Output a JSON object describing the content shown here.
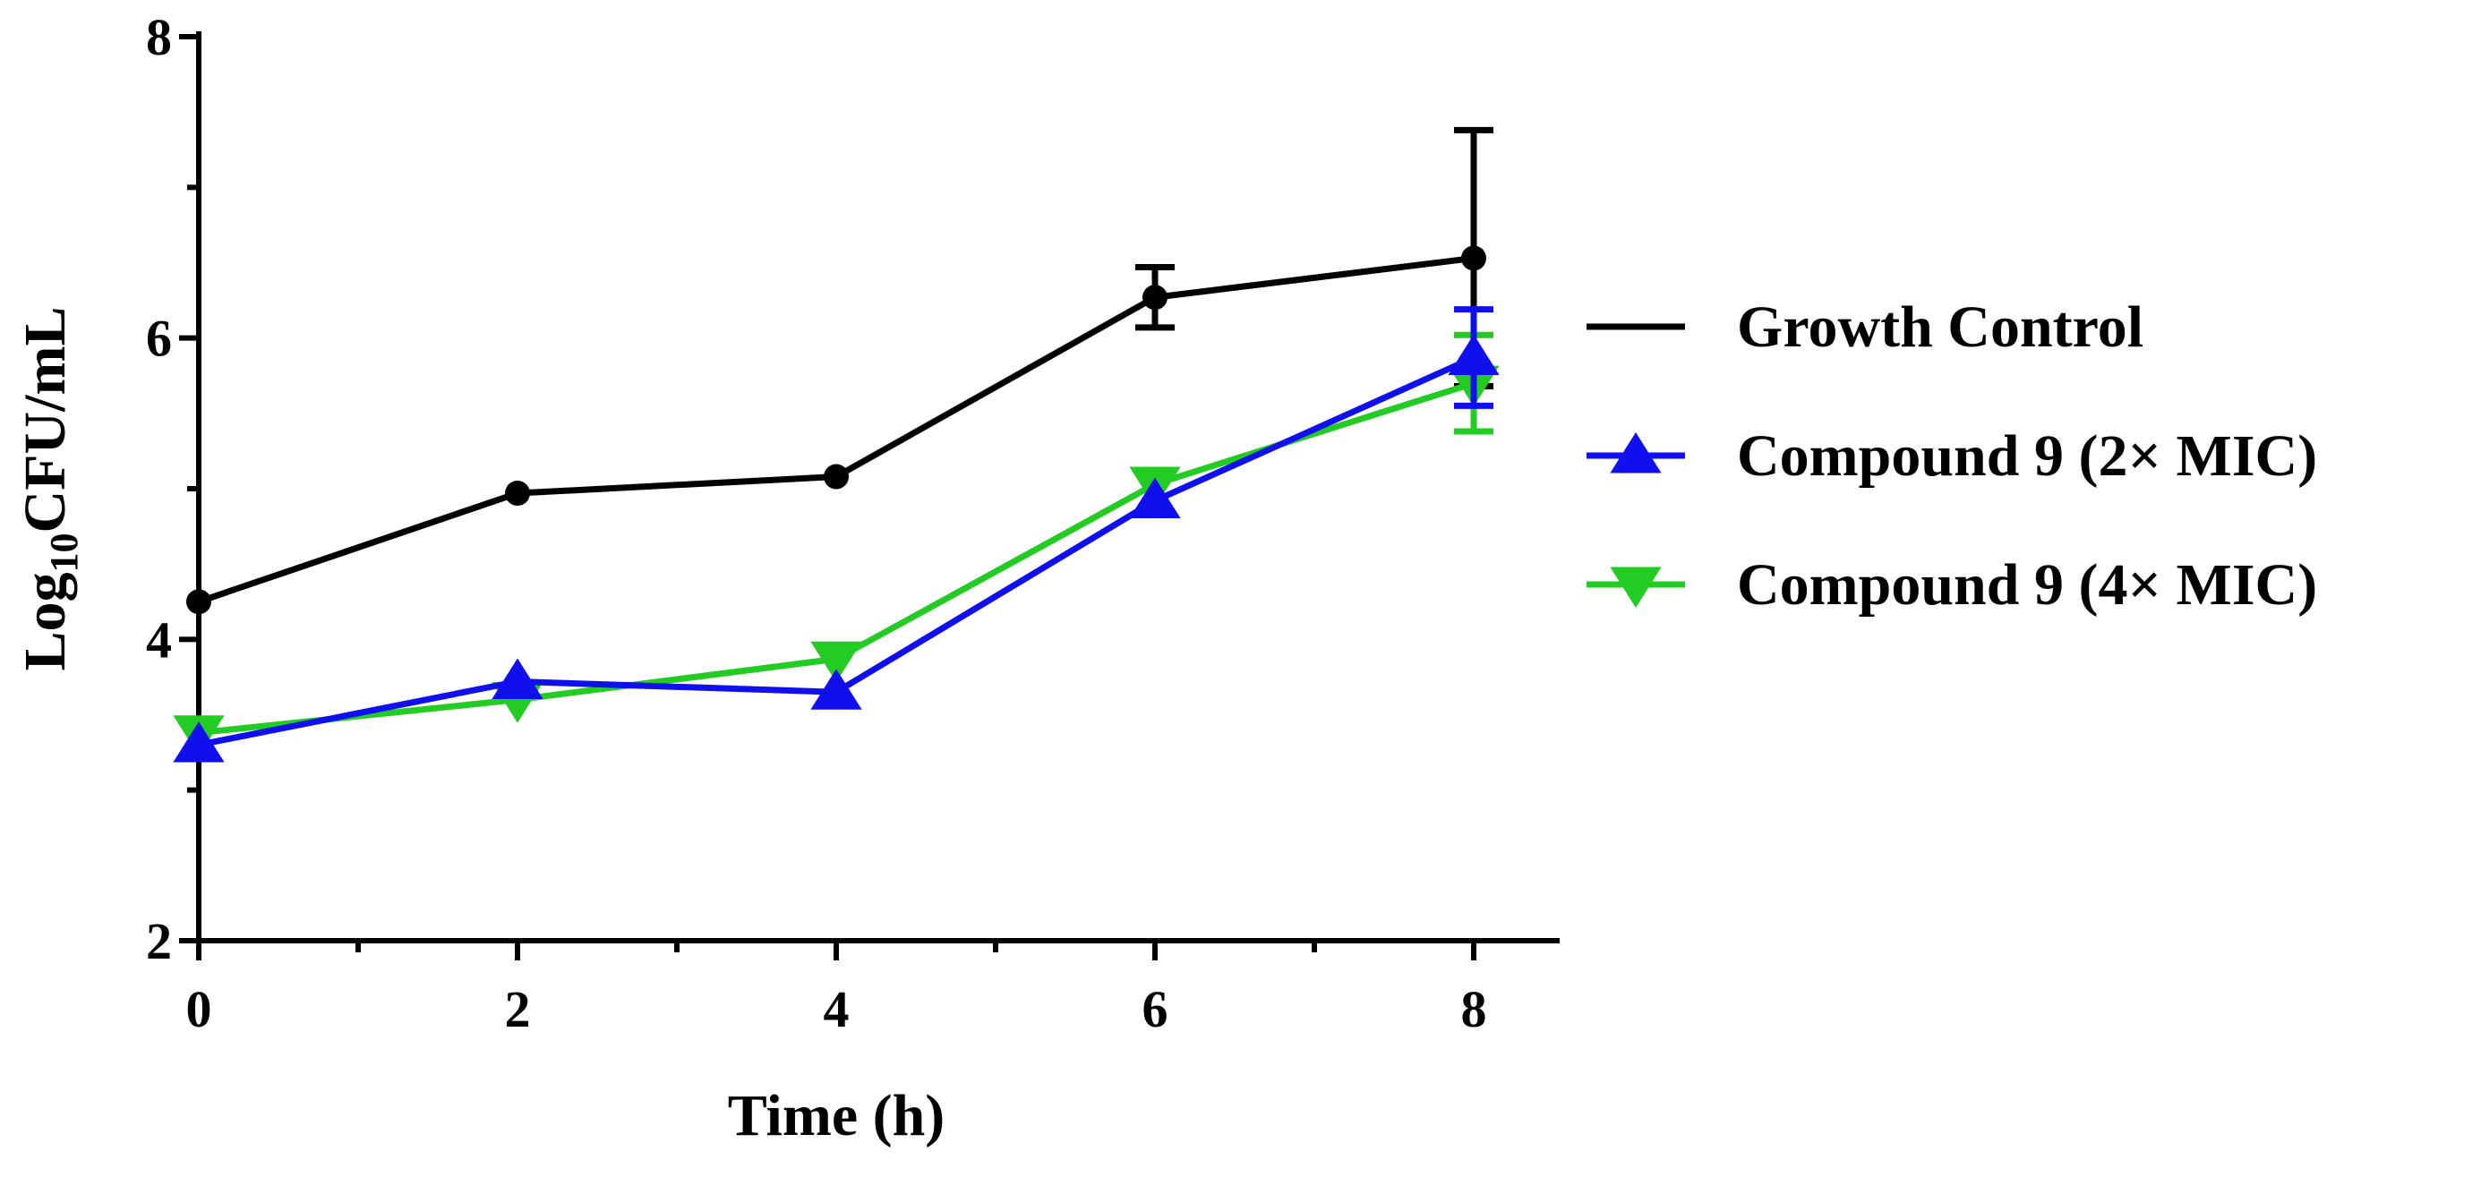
{
  "chart_data": {
    "type": "line",
    "title": "",
    "xlabel": "Time (h)",
    "ylabel": {
      "prefix": "Log",
      "subscript": "10",
      "suffix": "CFU/mL"
    },
    "xlim": [
      0,
      8.5
    ],
    "ylim": [
      2,
      8
    ],
    "xticks": [
      0,
      2,
      4,
      6,
      8
    ],
    "yticks": [
      2,
      4,
      6,
      8
    ],
    "x": [
      0,
      2,
      4,
      6,
      8
    ],
    "legend_position": "right",
    "series": [
      {
        "name": "Growth Control",
        "color": "#000000",
        "marker": "circle",
        "values": [
          4.25,
          4.97,
          5.08,
          6.27,
          6.53
        ],
        "errors": [
          0.03,
          0.03,
          0.03,
          0.2,
          0.85
        ]
      },
      {
        "name": "Compound 9 (2× MIC)",
        "color": "#1010ee",
        "marker": "triangle-up",
        "values": [
          3.3,
          3.72,
          3.65,
          4.92,
          5.87
        ],
        "errors": [
          0.03,
          0.03,
          0.03,
          0.03,
          0.32
        ]
      },
      {
        "name": "Compound 9 (4× MIC)",
        "color": "#22cc22",
        "marker": "triangle-down",
        "values": [
          3.38,
          3.6,
          3.87,
          5.03,
          5.7
        ],
        "errors": [
          0.03,
          0.03,
          0.03,
          0.03,
          0.32
        ]
      }
    ]
  }
}
